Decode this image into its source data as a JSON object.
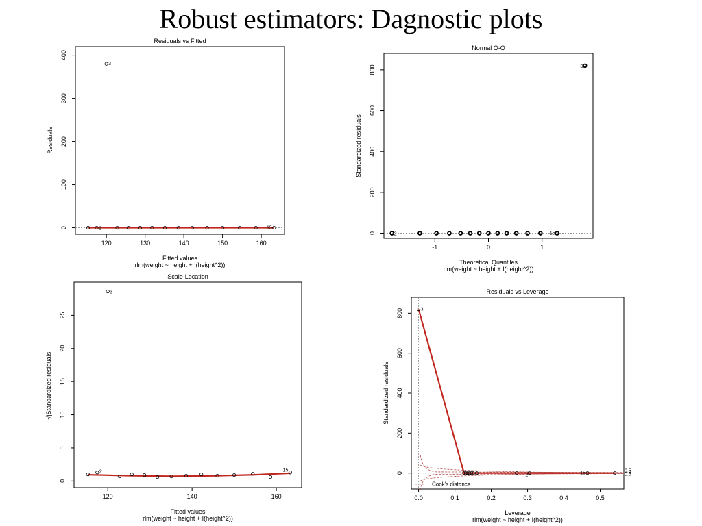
{
  "slide_title": "Robust estimators: Dagnostic plots",
  "colors": {
    "fit_line": "#c0281f",
    "points": "#000000",
    "reference": "#888888",
    "cooks": "#b04a4a"
  },
  "chart_data": [
    {
      "type": "scatter",
      "title": "Residuals vs Fitted",
      "xlabel": "Fitted values",
      "sublabel": "rlm(weight ~ height + I(height^2))",
      "ylabel": "Residuals",
      "xlim": [
        112,
        166
      ],
      "ylim": [
        -15,
        420
      ],
      "xticks": [
        120,
        130,
        140,
        150,
        160
      ],
      "yticks": [
        0,
        100,
        200,
        300,
        400
      ],
      "reference_line_y": 0,
      "points": [
        {
          "x": 115.3,
          "y": 0,
          "label": ""
        },
        {
          "x": 117.5,
          "y": 0,
          "label": "2"
        },
        {
          "x": 120.0,
          "y": 380,
          "label": "3"
        },
        {
          "x": 122.8,
          "y": 0,
          "label": ""
        },
        {
          "x": 125.7,
          "y": 0,
          "label": ""
        },
        {
          "x": 128.7,
          "y": 0,
          "label": ""
        },
        {
          "x": 131.8,
          "y": 0,
          "label": ""
        },
        {
          "x": 135.1,
          "y": 0,
          "label": ""
        },
        {
          "x": 138.6,
          "y": 0,
          "label": ""
        },
        {
          "x": 142.2,
          "y": 0,
          "label": ""
        },
        {
          "x": 146.0,
          "y": 0,
          "label": ""
        },
        {
          "x": 150.0,
          "y": 0,
          "label": ""
        },
        {
          "x": 154.4,
          "y": 0,
          "label": ""
        },
        {
          "x": 158.6,
          "y": 0,
          "label": ""
        },
        {
          "x": 163.3,
          "y": 0,
          "label": "15"
        }
      ],
      "fit_line": [
        [
          115.3,
          0
        ],
        [
          163.3,
          0
        ]
      ]
    },
    {
      "type": "scatter",
      "title": "Normal Q-Q",
      "xlabel": "Theoretical Quantiles",
      "sublabel": "rlm(weight ~ height + I(height^2))",
      "ylabel": "Standardized residuals",
      "xlim": [
        -1.95,
        1.95
      ],
      "ylim": [
        -25,
        880
      ],
      "xticks": [
        -1,
        0,
        1
      ],
      "yticks": [
        0,
        200,
        400,
        600,
        800
      ],
      "reference_line_y": 0,
      "points": [
        {
          "x": -1.8,
          "y": 0,
          "label": "2"
        },
        {
          "x": -1.28,
          "y": 0,
          "label": ""
        },
        {
          "x": -0.97,
          "y": 0,
          "label": ""
        },
        {
          "x": -0.73,
          "y": 0,
          "label": ""
        },
        {
          "x": -0.52,
          "y": 0,
          "label": ""
        },
        {
          "x": -0.34,
          "y": 0,
          "label": ""
        },
        {
          "x": -0.17,
          "y": 0,
          "label": ""
        },
        {
          "x": 0.0,
          "y": 0,
          "label": ""
        },
        {
          "x": 0.17,
          "y": 0,
          "label": ""
        },
        {
          "x": 0.34,
          "y": 0,
          "label": ""
        },
        {
          "x": 0.52,
          "y": 0,
          "label": ""
        },
        {
          "x": 0.73,
          "y": 0,
          "label": ""
        },
        {
          "x": 0.97,
          "y": 0,
          "label": ""
        },
        {
          "x": 1.28,
          "y": 0,
          "label": "15"
        },
        {
          "x": 1.8,
          "y": 820,
          "label": "3"
        }
      ]
    },
    {
      "type": "scatter",
      "title": "Scale-Location",
      "xlabel": "Fitted values",
      "sublabel": "rlm(weight ~ height + I(height^2))",
      "ylabel": "√|Standardized residuals|",
      "xlim": [
        112,
        166
      ],
      "ylim": [
        -1,
        30
      ],
      "xticks": [
        120,
        140,
        160
      ],
      "yticks": [
        0,
        5,
        10,
        15,
        20,
        25
      ],
      "points": [
        {
          "x": 115.3,
          "y": 1.0,
          "label": ""
        },
        {
          "x": 117.5,
          "y": 1.3,
          "label": "2"
        },
        {
          "x": 120.0,
          "y": 28.6,
          "label": "3"
        },
        {
          "x": 122.8,
          "y": 0.7,
          "label": ""
        },
        {
          "x": 125.7,
          "y": 1.0,
          "label": ""
        },
        {
          "x": 128.7,
          "y": 0.9,
          "label": ""
        },
        {
          "x": 131.8,
          "y": 0.6,
          "label": ""
        },
        {
          "x": 135.1,
          "y": 0.7,
          "label": ""
        },
        {
          "x": 138.6,
          "y": 0.8,
          "label": ""
        },
        {
          "x": 142.2,
          "y": 1.0,
          "label": ""
        },
        {
          "x": 146.0,
          "y": 0.8,
          "label": ""
        },
        {
          "x": 150.0,
          "y": 0.9,
          "label": ""
        },
        {
          "x": 154.4,
          "y": 1.1,
          "label": ""
        },
        {
          "x": 158.6,
          "y": 0.6,
          "label": ""
        },
        {
          "x": 163.3,
          "y": 1.3,
          "label": "15"
        }
      ],
      "fit_line": [
        [
          115.3,
          0.95
        ],
        [
          125,
          0.8
        ],
        [
          135,
          0.72
        ],
        [
          145,
          0.78
        ],
        [
          155,
          0.95
        ],
        [
          163.3,
          1.18
        ]
      ]
    },
    {
      "type": "scatter",
      "title": "Residuals vs Leverage",
      "xlabel": "Leverage",
      "sublabel": "rlm(weight ~ height + I(height^2))",
      "ylabel": "Standardized residuals",
      "xlim": [
        -0.02,
        0.565
      ],
      "ylim": [
        -80,
        880
      ],
      "xticks": [
        0.0,
        0.1,
        0.2,
        0.3,
        0.4,
        0.5
      ],
      "yticks": [
        0,
        200,
        400,
        600,
        800
      ],
      "reference_line_y": 0,
      "reference_line_x": 0,
      "cooks_contour_labels": [
        "0.5",
        "0.5"
      ],
      "legend": {
        "position": "bottom-left",
        "label": "Cook's distance"
      },
      "points": [
        {
          "x": 0.0,
          "y": 820,
          "label": "3"
        },
        {
          "x": 0.125,
          "y": 0,
          "label": ""
        },
        {
          "x": 0.13,
          "y": 0,
          "label": ""
        },
        {
          "x": 0.135,
          "y": 0,
          "label": ""
        },
        {
          "x": 0.14,
          "y": 0,
          "label": ""
        },
        {
          "x": 0.145,
          "y": 0,
          "label": ""
        },
        {
          "x": 0.15,
          "y": 0,
          "label": ""
        },
        {
          "x": 0.16,
          "y": 0,
          "label": ""
        },
        {
          "x": 0.27,
          "y": 0,
          "label": ""
        },
        {
          "x": 0.305,
          "y": 0,
          "label": "2"
        },
        {
          "x": 0.465,
          "y": 0,
          "label": "15"
        },
        {
          "x": 0.54,
          "y": 0,
          "label": ""
        }
      ],
      "fit_line": [
        [
          0.0,
          820
        ],
        [
          0.125,
          0
        ],
        [
          0.54,
          0
        ]
      ]
    }
  ]
}
